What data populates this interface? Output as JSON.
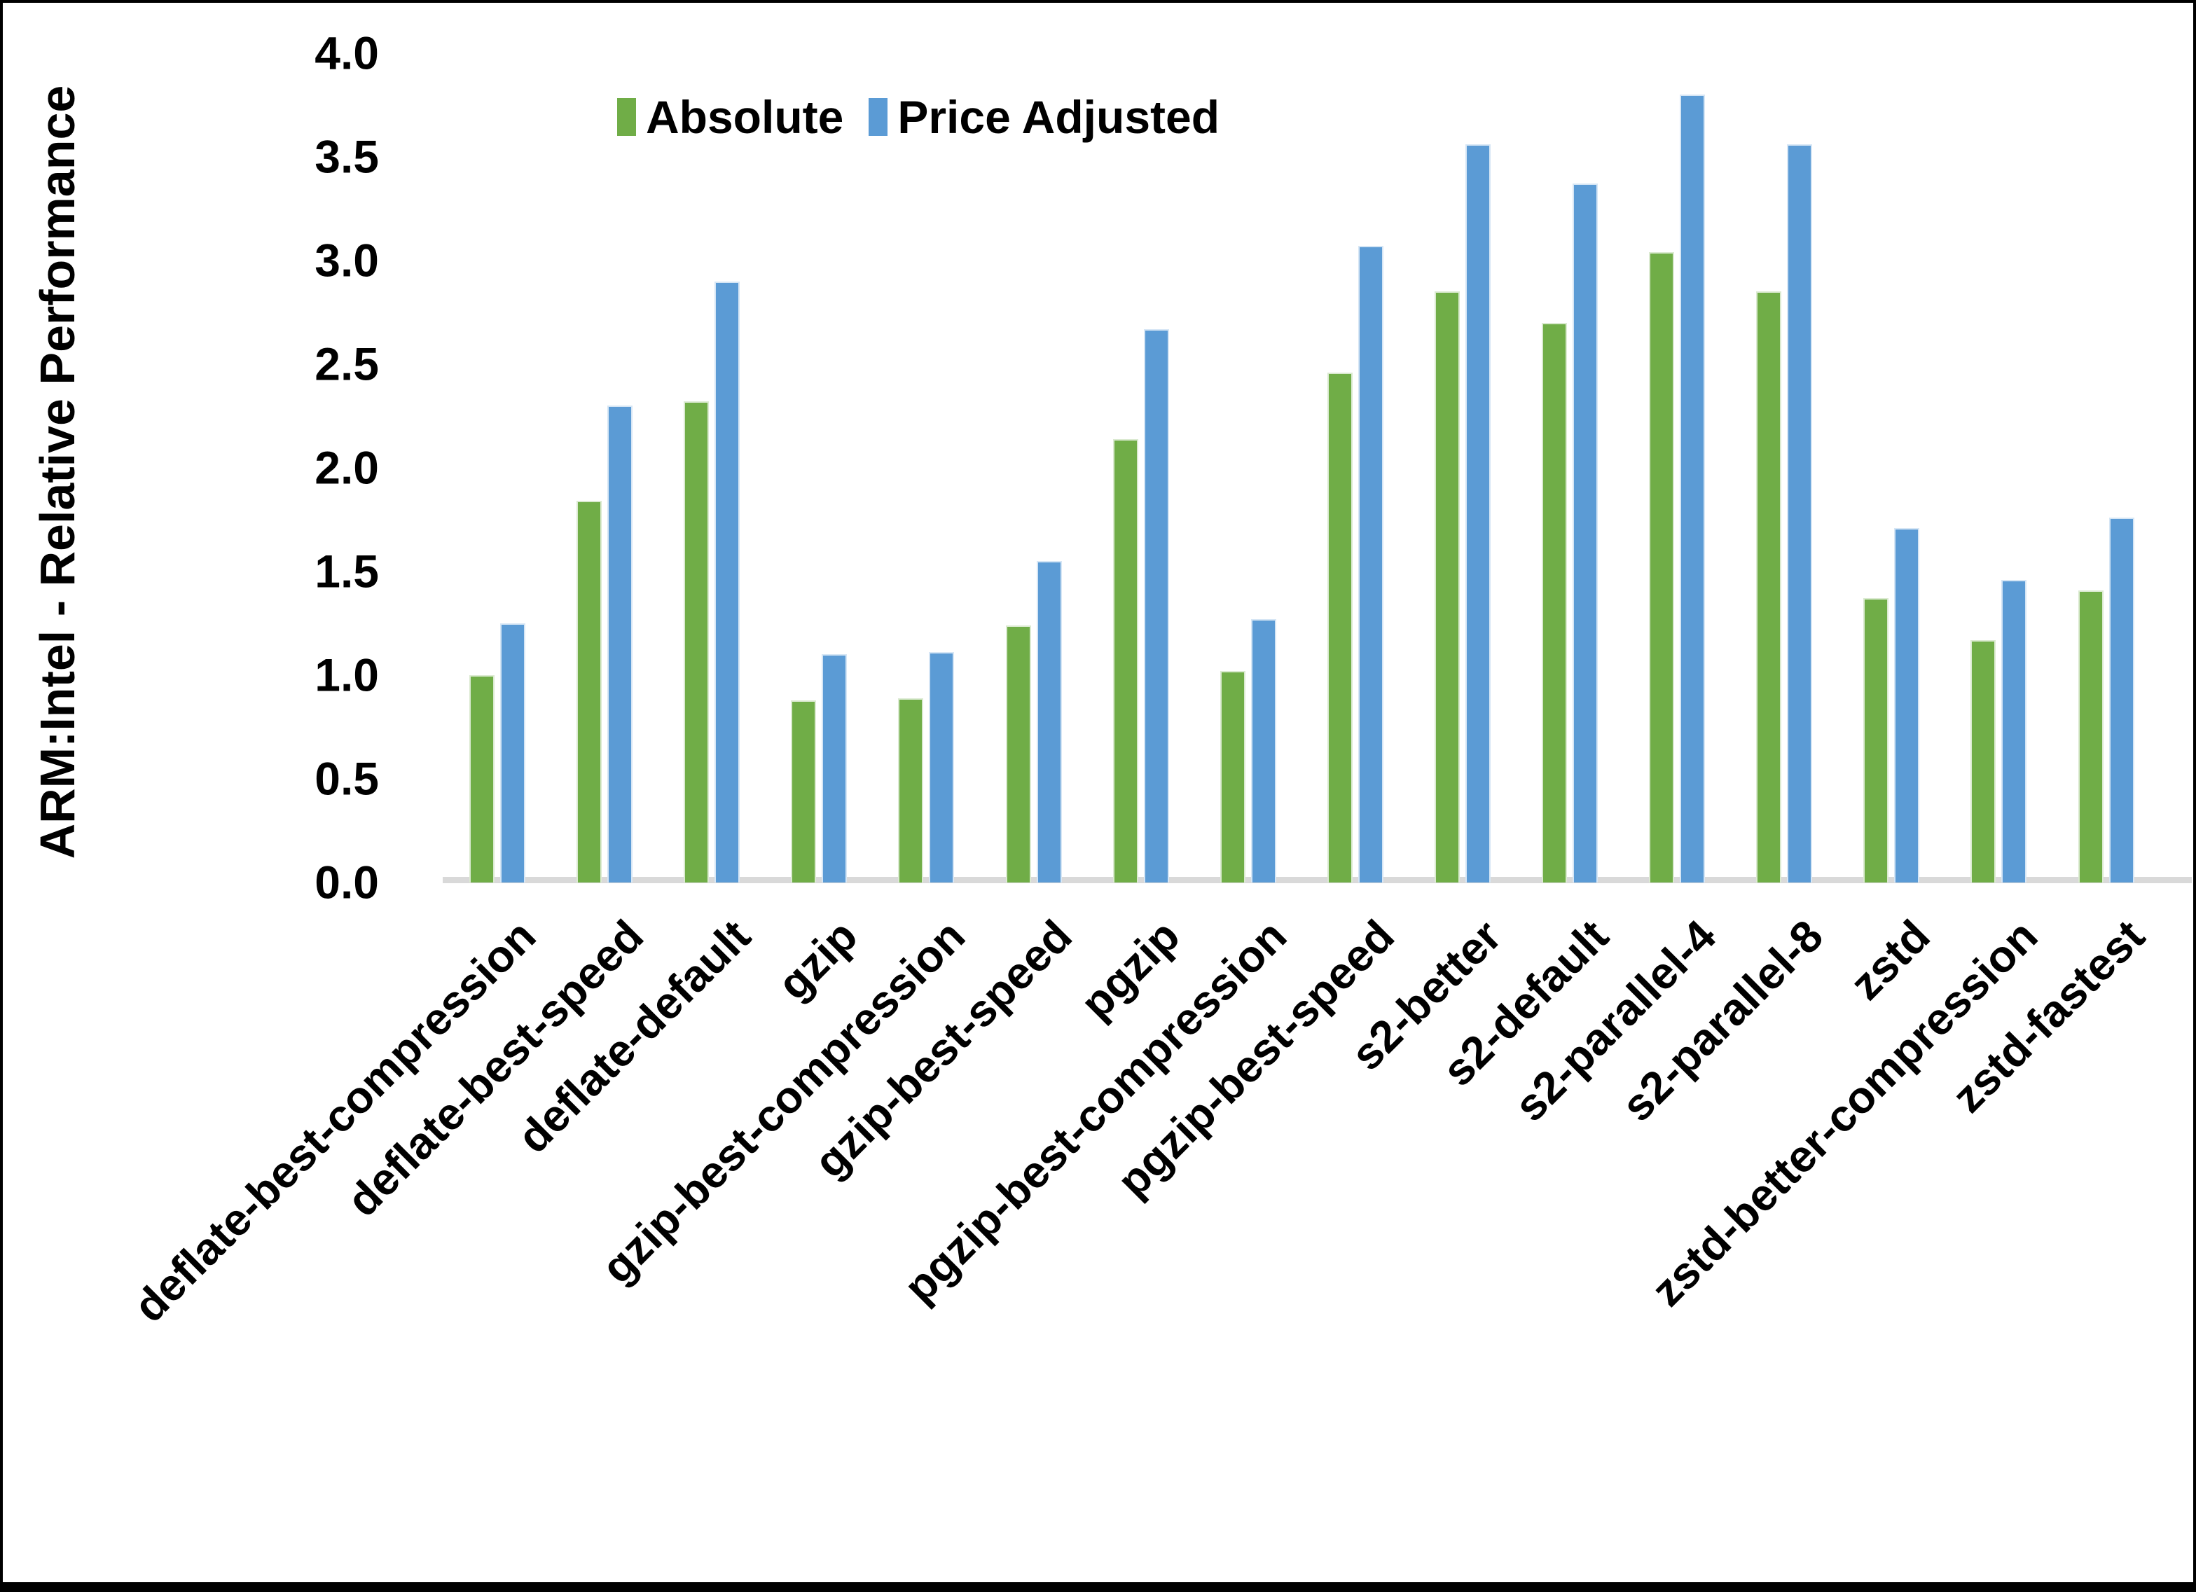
{
  "chart_data": {
    "type": "bar",
    "title": "",
    "ylabel": "ARM:Intel - Relative Performance",
    "xlabel": "",
    "ylim": [
      0.0,
      4.0
    ],
    "ytick_step": 0.5,
    "yticks": [
      "0.0",
      "0.5",
      "1.0",
      "1.5",
      "2.0",
      "2.5",
      "3.0",
      "3.5",
      "4.0"
    ],
    "grid": false,
    "legend_position": "top",
    "axis_line_color": "#D9D9D9",
    "categories": [
      "deflate-best-compression",
      "deflate-best-speed",
      "deflate-default",
      "gzip",
      "gzip-best-compression",
      "gzip-best-speed",
      "pgzip",
      "pgzip-best-compression",
      "pgzip-best-speed",
      "s2-better",
      "s2-default",
      "s2-parallel-4",
      "s2-parallel-8",
      "zstd",
      "zstd-better-compression",
      "zstd-fastest"
    ],
    "series": [
      {
        "name": "Absolute",
        "color": "#70AD47",
        "values": [
          1.0,
          1.84,
          2.32,
          0.88,
          0.89,
          1.24,
          2.14,
          1.02,
          2.46,
          2.85,
          2.7,
          3.04,
          2.85,
          1.37,
          1.17,
          1.41
        ]
      },
      {
        "name": "Price Adjusted",
        "color": "#5B9BD5",
        "values": [
          1.25,
          2.3,
          2.9,
          1.1,
          1.11,
          1.55,
          2.67,
          1.27,
          3.07,
          3.56,
          3.37,
          3.8,
          3.56,
          1.71,
          1.46,
          1.76
        ]
      }
    ]
  }
}
